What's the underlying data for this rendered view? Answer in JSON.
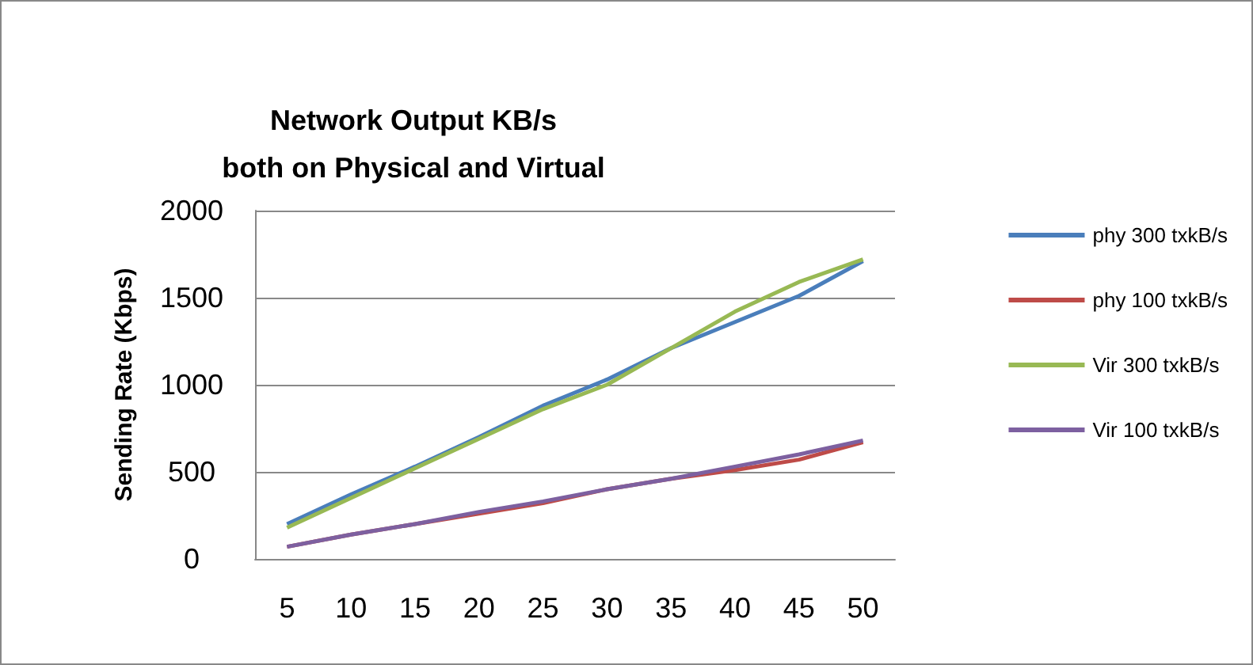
{
  "chart_data": {
    "type": "line",
    "title": "Network Output KB/s\nboth on Physical and Virtual",
    "ylabel": "Sending Rate (Kbps)",
    "categories": [
      "5",
      "10",
      "15",
      "20",
      "25",
      "30",
      "35",
      "40",
      "45",
      "50"
    ],
    "series": [
      {
        "name": "phy 300 txkB/s",
        "color": "#4a7ebb",
        "values": [
          200,
          370,
          530,
          700,
          880,
          1030,
          1210,
          1360,
          1510,
          1710
        ]
      },
      {
        "name": "phy 100 txkB/s",
        "color": "#be4b48",
        "values": [
          70,
          140,
          200,
          260,
          320,
          400,
          460,
          510,
          570,
          670
        ]
      },
      {
        "name": "Vir 300 txkB/s",
        "color": "#98b954",
        "values": [
          180,
          350,
          520,
          690,
          860,
          1000,
          1210,
          1420,
          1590,
          1720
        ]
      },
      {
        "name": "Vir 100 txkB/s",
        "color": "#7d60a0",
        "values": [
          70,
          140,
          200,
          270,
          330,
          400,
          460,
          530,
          600,
          680
        ]
      }
    ],
    "ylim": [
      0,
      2000
    ],
    "yticks": [
      0,
      500,
      1000,
      1500,
      2000
    ],
    "grid": "y",
    "legend": "right",
    "marker": "none",
    "line_style": "solid"
  }
}
